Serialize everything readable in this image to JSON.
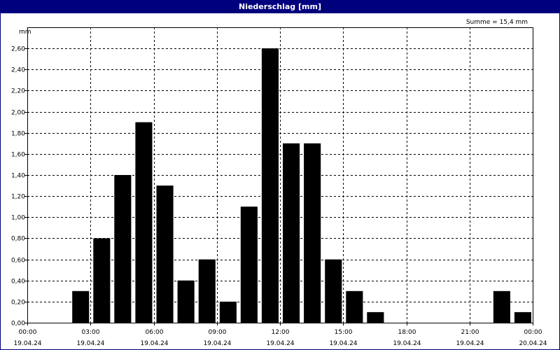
{
  "window": {
    "title": "Niederschlag [mm]"
  },
  "chart_data": {
    "type": "bar",
    "title": "Niederschlag [mm]",
    "ylabel": "mm",
    "annotation": "Summe = 15,4 mm",
    "ylim": [
      0,
      2.8
    ],
    "y_ticks": [
      "0,00",
      "0,20",
      "0,40",
      "0,60",
      "0,80",
      "1,00",
      "1,20",
      "1,40",
      "1,60",
      "1,80",
      "2,00",
      "2,20",
      "2,40",
      "2,60"
    ],
    "x_ticks": [
      {
        "time": "00:00",
        "date": "19.04.24"
      },
      {
        "time": "03:00",
        "date": "19.04.24"
      },
      {
        "time": "06:00",
        "date": "19.04.24"
      },
      {
        "time": "09:00",
        "date": "19.04.24"
      },
      {
        "time": "12:00",
        "date": "19.04.24"
      },
      {
        "time": "15:00",
        "date": "19.04.24"
      },
      {
        "time": "18:00",
        "date": "19.04.24"
      },
      {
        "time": "21:00",
        "date": "19.04.24"
      },
      {
        "time": "00:00",
        "date": "20.04.24"
      }
    ],
    "categories": [
      "00:00",
      "01:00",
      "02:00",
      "03:00",
      "04:00",
      "05:00",
      "06:00",
      "07:00",
      "08:00",
      "09:00",
      "10:00",
      "11:00",
      "12:00",
      "13:00",
      "14:00",
      "15:00",
      "16:00",
      "17:00",
      "18:00",
      "19:00",
      "20:00",
      "21:00",
      "22:00",
      "23:00"
    ],
    "values": [
      0,
      0,
      0.3,
      0.8,
      1.4,
      1.9,
      1.3,
      0.4,
      0.6,
      0.2,
      1.1,
      2.6,
      1.7,
      1.7,
      0.6,
      0.3,
      0.1,
      0,
      0,
      0,
      0,
      0,
      0.3,
      0.1
    ],
    "grid": true,
    "colors": {
      "bar": "#000000",
      "grid": "#000000",
      "title_bg": "#00007c"
    }
  }
}
